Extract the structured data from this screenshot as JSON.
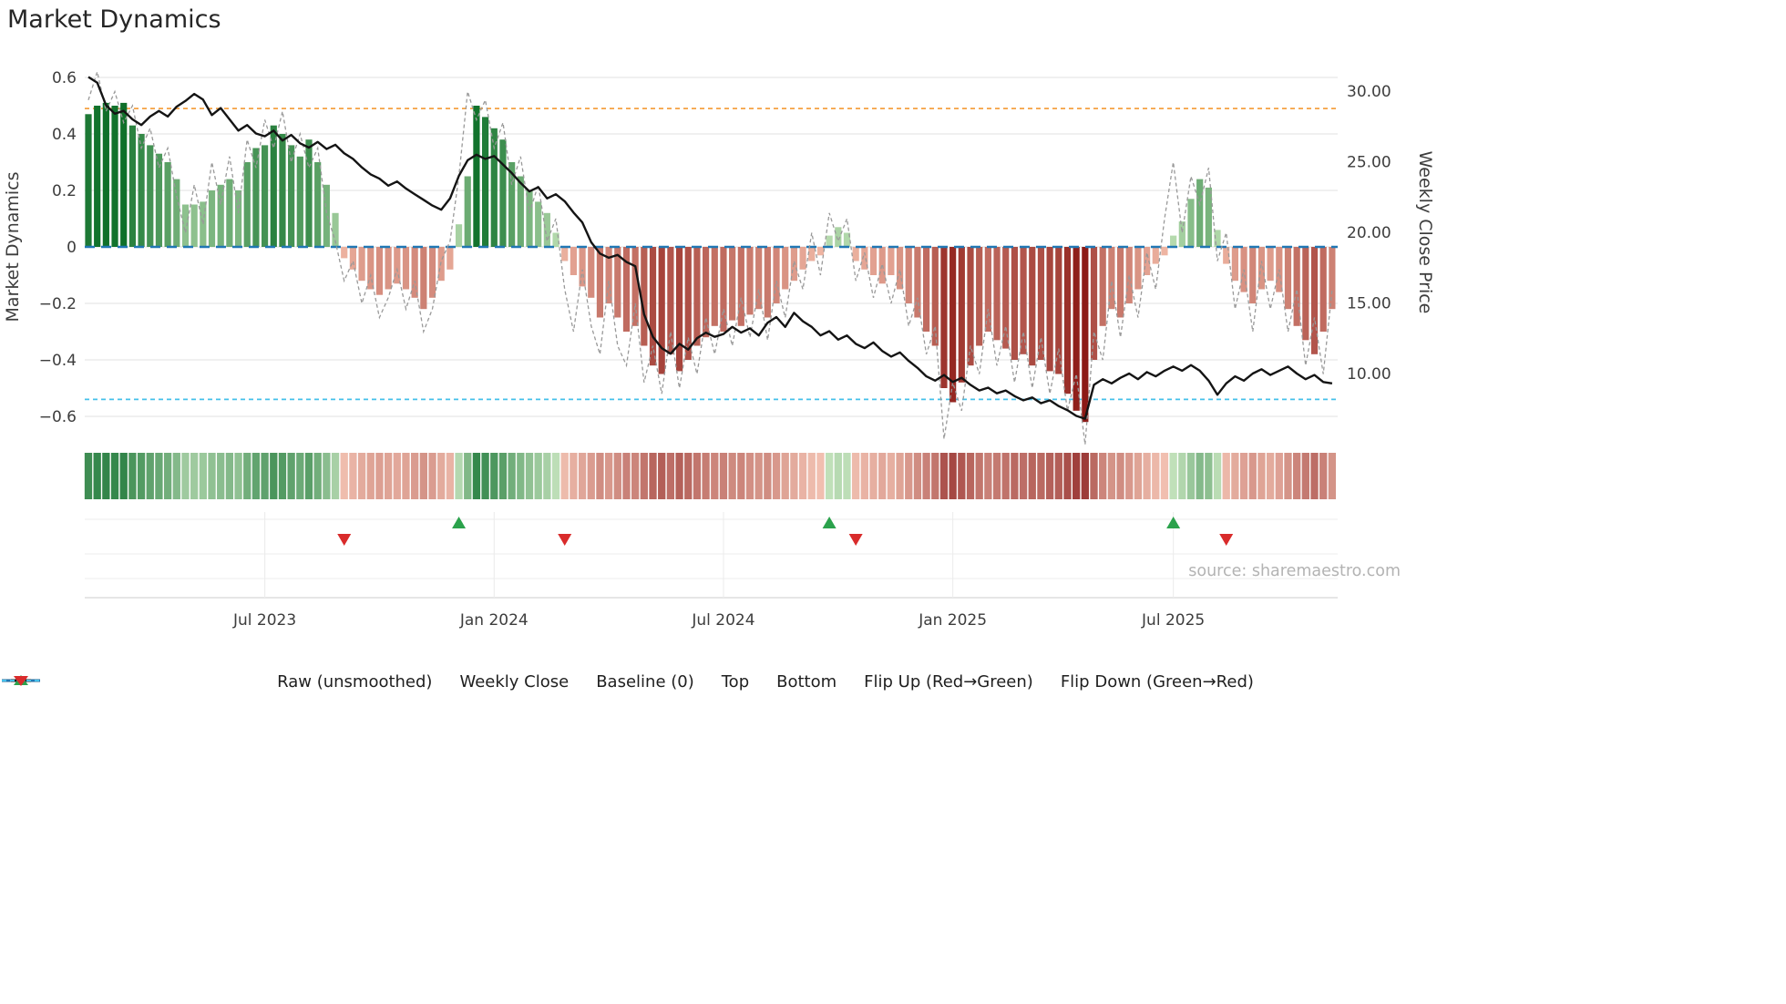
{
  "title": "Market Dynamics",
  "source_text": "source: sharemaestro.com",
  "axes": {
    "left_label": "Market Dynamics",
    "right_label": "Weekly Close Price",
    "left_ticks": [
      "0.6",
      "0.4",
      "0.2",
      "0",
      "−0.2",
      "−0.4",
      "−0.6"
    ],
    "right_ticks": [
      "30.00",
      "25.00",
      "20.00",
      "15.00",
      "10.00"
    ],
    "x_ticks": [
      "Jul 2023",
      "Jan 2024",
      "Jul 2024",
      "Jan 2025",
      "Jul 2025"
    ]
  },
  "colors": {
    "baseline": "#2077b4",
    "top": "#f5a142",
    "bottom": "#45c0ea",
    "raw_line": "#999999",
    "close_line": "#141414",
    "flip_up": "#2ba24c",
    "flip_down": "#d92b2b",
    "bar_green_dark": "#0b6e27",
    "bar_green_light": "#c3e3b8",
    "bar_red_dark": "#8c1a16",
    "bar_red_light": "#f3bca9",
    "grid": "#e7e7e7",
    "axis_text": "#3d3d3d",
    "source_text": "#b3b3b3"
  },
  "legend": {
    "items": [
      {
        "id": "raw",
        "label": "Raw (unsmoothed)",
        "swatch": "dashed",
        "color": "#999999"
      },
      {
        "id": "weekly-close",
        "label": "Weekly Close",
        "swatch": "solid",
        "color": "#141414"
      },
      {
        "id": "baseline",
        "label": "Baseline (0)",
        "swatch": "dashed-long",
        "color": "#2077b4"
      },
      {
        "id": "top",
        "label": "Top",
        "swatch": "dashed",
        "color": "#f5a142"
      },
      {
        "id": "bottom",
        "label": "Bottom",
        "swatch": "dashed",
        "color": "#45c0ea"
      },
      {
        "id": "flip-up",
        "label": "Flip Up (Red→Green)",
        "swatch": "triangle-up",
        "color": "#2ba24c"
      },
      {
        "id": "flip-down",
        "label": "Flip Down (Green→Red)",
        "swatch": "triangle-down",
        "color": "#d92b2b"
      }
    ]
  },
  "chart_data": {
    "type": "combo",
    "title": "Market Dynamics",
    "n_weeks": 142,
    "x_tick_labels": [
      "Jul 2023",
      "Jan 2024",
      "Jul 2024",
      "Jan 2025",
      "Jul 2025"
    ],
    "x_tick_week_indices": [
      20,
      46,
      72,
      98,
      123
    ],
    "ylabel_left": "Market Dynamics",
    "ylabel_right": "Weekly Close Price",
    "ylim_left": [
      -0.7,
      0.66
    ],
    "ylim_right": [
      6.0,
      32.0
    ],
    "baseline": 0,
    "top_level": 0.49,
    "bottom_level": -0.54,
    "grid": "horizontal-only",
    "legend_position": "bottom",
    "flip_up_week_indices": [
      42,
      84,
      123
    ],
    "flip_down_week_indices": [
      29,
      54,
      87,
      129
    ],
    "heatmap_note": "heatmap strip mirrors bar series values",
    "series": [
      {
        "name": "Market Dynamics",
        "type": "bar",
        "axis": "left",
        "values": [
          0.47,
          0.5,
          0.51,
          0.5,
          0.51,
          0.43,
          0.4,
          0.36,
          0.33,
          0.3,
          0.24,
          0.15,
          0.15,
          0.16,
          0.2,
          0.22,
          0.24,
          0.2,
          0.3,
          0.35,
          0.36,
          0.43,
          0.4,
          0.36,
          0.32,
          0.38,
          0.3,
          0.22,
          0.12,
          -0.04,
          -0.08,
          -0.12,
          -0.15,
          -0.17,
          -0.15,
          -0.13,
          -0.15,
          -0.18,
          -0.22,
          -0.18,
          -0.12,
          -0.08,
          0.08,
          0.25,
          0.5,
          0.46,
          0.42,
          0.38,
          0.3,
          0.25,
          0.2,
          0.16,
          0.12,
          0.05,
          -0.05,
          -0.1,
          -0.14,
          -0.18,
          -0.25,
          -0.2,
          -0.25,
          -0.3,
          -0.28,
          -0.35,
          -0.42,
          -0.45,
          -0.38,
          -0.44,
          -0.4,
          -0.35,
          -0.32,
          -0.28,
          -0.3,
          -0.26,
          -0.28,
          -0.24,
          -0.22,
          -0.25,
          -0.2,
          -0.15,
          -0.12,
          -0.08,
          -0.05,
          -0.03,
          0.04,
          0.07,
          0.05,
          -0.05,
          -0.08,
          -0.1,
          -0.13,
          -0.1,
          -0.15,
          -0.2,
          -0.25,
          -0.3,
          -0.35,
          -0.5,
          -0.55,
          -0.48,
          -0.42,
          -0.35,
          -0.3,
          -0.33,
          -0.36,
          -0.4,
          -0.38,
          -0.42,
          -0.4,
          -0.44,
          -0.45,
          -0.52,
          -0.58,
          -0.62,
          -0.4,
          -0.28,
          -0.22,
          -0.25,
          -0.2,
          -0.15,
          -0.1,
          -0.06,
          -0.03,
          0.04,
          0.09,
          0.17,
          0.24,
          0.21,
          0.06,
          -0.06,
          -0.12,
          -0.16,
          -0.2,
          -0.15,
          -0.12,
          -0.16,
          -0.22,
          -0.28,
          -0.33,
          -0.38,
          -0.3,
          -0.22
        ]
      },
      {
        "name": "Raw (unsmoothed)",
        "type": "line",
        "axis": "left",
        "values": [
          0.52,
          0.62,
          0.48,
          0.55,
          0.44,
          0.5,
          0.35,
          0.42,
          0.28,
          0.35,
          0.18,
          0.05,
          0.22,
          0.08,
          0.3,
          0.15,
          0.32,
          0.12,
          0.38,
          0.28,
          0.45,
          0.35,
          0.48,
          0.3,
          0.4,
          0.28,
          0.35,
          0.12,
          0.02,
          -0.12,
          -0.05,
          -0.2,
          -0.1,
          -0.25,
          -0.18,
          -0.08,
          -0.22,
          -0.12,
          -0.3,
          -0.22,
          -0.05,
          0.02,
          0.25,
          0.55,
          0.45,
          0.52,
          0.35,
          0.44,
          0.22,
          0.32,
          0.12,
          0.22,
          0.02,
          0.1,
          -0.15,
          -0.3,
          -0.08,
          -0.28,
          -0.38,
          -0.12,
          -0.35,
          -0.42,
          -0.2,
          -0.48,
          -0.35,
          -0.52,
          -0.3,
          -0.5,
          -0.32,
          -0.45,
          -0.25,
          -0.38,
          -0.22,
          -0.35,
          -0.18,
          -0.32,
          -0.15,
          -0.33,
          -0.12,
          -0.25,
          -0.05,
          -0.15,
          0.05,
          -0.1,
          0.12,
          0.02,
          0.1,
          -0.12,
          -0.02,
          -0.18,
          -0.06,
          -0.2,
          -0.08,
          -0.28,
          -0.18,
          -0.38,
          -0.28,
          -0.68,
          -0.48,
          -0.58,
          -0.35,
          -0.45,
          -0.22,
          -0.42,
          -0.28,
          -0.48,
          -0.3,
          -0.5,
          -0.32,
          -0.52,
          -0.36,
          -0.58,
          -0.45,
          -0.7,
          -0.3,
          -0.4,
          -0.12,
          -0.32,
          -0.1,
          -0.25,
          -0.02,
          -0.15,
          0.1,
          0.3,
          0.05,
          0.25,
          0.15,
          0.28,
          -0.05,
          0.05,
          -0.22,
          -0.08,
          -0.3,
          -0.05,
          -0.22,
          -0.08,
          -0.3,
          -0.15,
          -0.42,
          -0.25,
          -0.45,
          -0.15
        ]
      },
      {
        "name": "Weekly Close",
        "type": "line",
        "axis": "right",
        "values": [
          31.0,
          30.6,
          29.0,
          28.4,
          28.6,
          28.0,
          27.6,
          28.2,
          28.6,
          28.2,
          28.9,
          29.3,
          29.8,
          29.4,
          28.3,
          28.8,
          28.0,
          27.2,
          27.6,
          27.0,
          26.8,
          27.2,
          26.5,
          26.9,
          26.3,
          26.0,
          26.4,
          25.9,
          26.2,
          25.6,
          25.2,
          24.6,
          24.1,
          23.8,
          23.3,
          23.6,
          23.1,
          22.7,
          22.3,
          21.9,
          21.6,
          22.4,
          24.0,
          25.1,
          25.5,
          25.2,
          25.4,
          24.8,
          24.2,
          23.5,
          22.9,
          23.2,
          22.4,
          22.7,
          22.2,
          21.4,
          20.7,
          19.3,
          18.5,
          18.2,
          18.4,
          17.9,
          17.6,
          14.2,
          12.6,
          11.8,
          11.4,
          12.1,
          11.7,
          12.5,
          12.9,
          12.6,
          12.8,
          13.3,
          12.9,
          13.2,
          12.7,
          13.6,
          14.0,
          13.3,
          14.3,
          13.7,
          13.3,
          12.7,
          13.0,
          12.4,
          12.7,
          12.1,
          11.8,
          12.2,
          11.6,
          11.2,
          11.5,
          10.9,
          10.4,
          9.8,
          9.5,
          9.9,
          9.4,
          9.7,
          9.2,
          8.8,
          9.0,
          8.6,
          8.8,
          8.4,
          8.1,
          8.3,
          7.9,
          8.1,
          7.7,
          7.4,
          7.0,
          6.8,
          9.2,
          9.6,
          9.3,
          9.7,
          10.0,
          9.6,
          10.1,
          9.8,
          10.2,
          10.5,
          10.2,
          10.6,
          10.2,
          9.5,
          8.5,
          9.3,
          9.8,
          9.5,
          10.0,
          10.3,
          9.9,
          10.2,
          10.5,
          10.0,
          9.6,
          9.9,
          9.4,
          9.3
        ]
      }
    ]
  }
}
